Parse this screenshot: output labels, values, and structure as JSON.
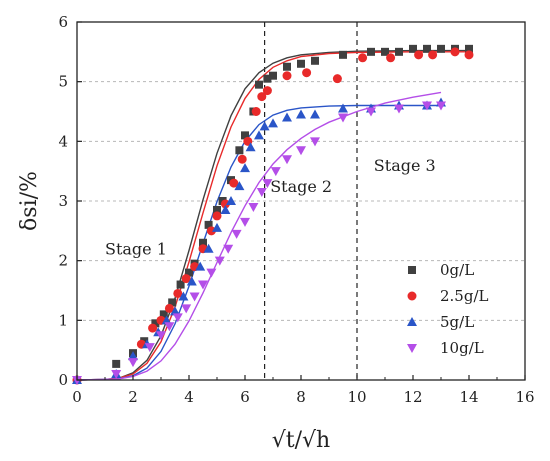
{
  "chart_data": {
    "type": "scatter",
    "xlabel": "√t/√h",
    "ylabel": "δsi/%",
    "xlim": [
      0,
      16
    ],
    "ylim": [
      0,
      6
    ],
    "x_ticks": [
      "0",
      "2",
      "4",
      "6",
      "8",
      "10",
      "12",
      "14",
      "16"
    ],
    "y_ticks": [
      "0",
      "1",
      "2",
      "3",
      "4",
      "5",
      "6"
    ],
    "grid": "horizontal dashed",
    "legend_position": "bottom-right",
    "vlines": [
      6.7,
      10.0
    ],
    "annotations": [
      {
        "text": "Stage 1",
        "x": 1.0,
        "y": 2.1
      },
      {
        "text": "Stage 2",
        "x": 6.9,
        "y": 3.15
      },
      {
        "text": "Stage 3",
        "x": 10.6,
        "y": 3.5
      }
    ],
    "series": [
      {
        "name": "0g/L",
        "marker": "square",
        "color": "#404040",
        "points": [
          [
            0,
            0
          ],
          [
            1.4,
            0.27
          ],
          [
            2.0,
            0.45
          ],
          [
            2.4,
            0.65
          ],
          [
            2.8,
            0.95
          ],
          [
            3.1,
            1.1
          ],
          [
            3.4,
            1.3
          ],
          [
            3.7,
            1.6
          ],
          [
            4.0,
            1.8
          ],
          [
            4.2,
            1.95
          ],
          [
            4.5,
            2.3
          ],
          [
            4.7,
            2.6
          ],
          [
            5.0,
            2.85
          ],
          [
            5.2,
            3.0
          ],
          [
            5.5,
            3.35
          ],
          [
            5.8,
            3.85
          ],
          [
            6.0,
            4.1
          ],
          [
            6.3,
            4.5
          ],
          [
            6.5,
            4.95
          ],
          [
            6.8,
            5.05
          ],
          [
            7.0,
            5.1
          ],
          [
            7.5,
            5.25
          ],
          [
            8.0,
            5.3
          ],
          [
            8.5,
            5.35
          ],
          [
            9.5,
            5.45
          ],
          [
            10.5,
            5.5
          ],
          [
            11.0,
            5.5
          ],
          [
            11.5,
            5.5
          ],
          [
            12.0,
            5.55
          ],
          [
            12.5,
            5.55
          ],
          [
            13.0,
            5.55
          ],
          [
            13.5,
            5.55
          ],
          [
            14.0,
            5.55
          ]
        ],
        "fit": [
          [
            0,
            0
          ],
          [
            1,
            0.01
          ],
          [
            1.5,
            0.03
          ],
          [
            2,
            0.12
          ],
          [
            2.5,
            0.33
          ],
          [
            3,
            0.74
          ],
          [
            3.5,
            1.37
          ],
          [
            4,
            2.17
          ],
          [
            4.5,
            3.02
          ],
          [
            5,
            3.8
          ],
          [
            5.5,
            4.43
          ],
          [
            6,
            4.88
          ],
          [
            6.5,
            5.15
          ],
          [
            7,
            5.31
          ],
          [
            7.5,
            5.4
          ],
          [
            8,
            5.45
          ],
          [
            9,
            5.49
          ],
          [
            10,
            5.51
          ],
          [
            12,
            5.52
          ],
          [
            14,
            5.52
          ]
        ]
      },
      {
        "name": "2.5g/L",
        "marker": "circle",
        "color": "#e82a2a",
        "points": [
          [
            0,
            0
          ],
          [
            2.3,
            0.6
          ],
          [
            2.7,
            0.87
          ],
          [
            3.0,
            1.0
          ],
          [
            3.3,
            1.2
          ],
          [
            3.6,
            1.45
          ],
          [
            3.9,
            1.7
          ],
          [
            4.2,
            1.9
          ],
          [
            4.5,
            2.2
          ],
          [
            4.8,
            2.5
          ],
          [
            5.0,
            2.75
          ],
          [
            5.3,
            2.95
          ],
          [
            5.6,
            3.3
          ],
          [
            5.9,
            3.7
          ],
          [
            6.1,
            4.0
          ],
          [
            6.4,
            4.5
          ],
          [
            6.6,
            4.75
          ],
          [
            6.8,
            4.85
          ],
          [
            7.5,
            5.1
          ],
          [
            8.2,
            5.15
          ],
          [
            9.3,
            5.05
          ],
          [
            10.2,
            5.4
          ],
          [
            11.2,
            5.4
          ],
          [
            12.2,
            5.45
          ],
          [
            12.7,
            5.45
          ],
          [
            13.5,
            5.5
          ],
          [
            14.0,
            5.45
          ]
        ],
        "fit": [
          [
            0,
            0
          ],
          [
            1,
            0.01
          ],
          [
            1.5,
            0.03
          ],
          [
            2,
            0.1
          ],
          [
            2.5,
            0.28
          ],
          [
            3,
            0.64
          ],
          [
            3.5,
            1.22
          ],
          [
            4,
            1.98
          ],
          [
            4.5,
            2.8
          ],
          [
            5,
            3.59
          ],
          [
            5.5,
            4.24
          ],
          [
            6,
            4.72
          ],
          [
            6.5,
            5.04
          ],
          [
            7,
            5.24
          ],
          [
            7.5,
            5.35
          ],
          [
            8,
            5.42
          ],
          [
            9,
            5.47
          ],
          [
            10,
            5.49
          ],
          [
            12,
            5.5
          ],
          [
            14,
            5.5
          ]
        ]
      },
      {
        "name": "5g/L",
        "marker": "triangle-up",
        "color": "#2a55c8",
        "points": [
          [
            0,
            0
          ],
          [
            1.4,
            0.1
          ],
          [
            2.0,
            0.4
          ],
          [
            2.5,
            0.6
          ],
          [
            2.9,
            0.8
          ],
          [
            3.2,
            1.0
          ],
          [
            3.5,
            1.15
          ],
          [
            3.8,
            1.4
          ],
          [
            4.1,
            1.65
          ],
          [
            4.4,
            1.9
          ],
          [
            4.7,
            2.2
          ],
          [
            5.0,
            2.55
          ],
          [
            5.3,
            2.85
          ],
          [
            5.5,
            3.0
          ],
          [
            5.8,
            3.25
          ],
          [
            6.0,
            3.55
          ],
          [
            6.2,
            3.9
          ],
          [
            6.5,
            4.1
          ],
          [
            6.7,
            4.25
          ],
          [
            7.0,
            4.3
          ],
          [
            7.5,
            4.4
          ],
          [
            8.0,
            4.45
          ],
          [
            8.5,
            4.45
          ],
          [
            9.5,
            4.55
          ],
          [
            10.5,
            4.55
          ],
          [
            11.5,
            4.6
          ],
          [
            12.5,
            4.6
          ],
          [
            13.0,
            4.65
          ]
        ],
        "fit": [
          [
            0,
            0
          ],
          [
            1,
            0.01
          ],
          [
            1.5,
            0.02
          ],
          [
            2,
            0.07
          ],
          [
            2.5,
            0.2
          ],
          [
            3,
            0.48
          ],
          [
            3.5,
            0.94
          ],
          [
            4,
            1.57
          ],
          [
            4.5,
            2.29
          ],
          [
            5,
            2.99
          ],
          [
            5.5,
            3.57
          ],
          [
            6,
            4.0
          ],
          [
            6.5,
            4.28
          ],
          [
            7,
            4.44
          ],
          [
            7.5,
            4.52
          ],
          [
            8,
            4.56
          ],
          [
            9,
            4.59
          ],
          [
            10,
            4.6
          ],
          [
            12,
            4.6
          ],
          [
            13,
            4.6
          ]
        ]
      },
      {
        "name": "10g/L",
        "marker": "triangle-down",
        "color": "#b44ee8",
        "points": [
          [
            0,
            0
          ],
          [
            1.4,
            0.1
          ],
          [
            2.0,
            0.3
          ],
          [
            2.6,
            0.55
          ],
          [
            3.0,
            0.75
          ],
          [
            3.3,
            0.9
          ],
          [
            3.6,
            1.05
          ],
          [
            3.9,
            1.2
          ],
          [
            4.2,
            1.4
          ],
          [
            4.5,
            1.6
          ],
          [
            4.8,
            1.8
          ],
          [
            5.1,
            2.0
          ],
          [
            5.4,
            2.2
          ],
          [
            5.7,
            2.45
          ],
          [
            6.0,
            2.65
          ],
          [
            6.3,
            2.9
          ],
          [
            6.6,
            3.15
          ],
          [
            6.8,
            3.3
          ],
          [
            7.1,
            3.5
          ],
          [
            7.5,
            3.7
          ],
          [
            8.0,
            3.85
          ],
          [
            8.5,
            4.0
          ],
          [
            9.5,
            4.4
          ],
          [
            10.5,
            4.5
          ],
          [
            11.5,
            4.55
          ],
          [
            12.5,
            4.6
          ],
          [
            13.0,
            4.6
          ]
        ],
        "fit": [
          [
            0,
            0
          ],
          [
            1,
            0.01
          ],
          [
            1.5,
            0.02
          ],
          [
            2,
            0.06
          ],
          [
            2.5,
            0.15
          ],
          [
            3,
            0.32
          ],
          [
            3.5,
            0.6
          ],
          [
            4,
            0.99
          ],
          [
            4.5,
            1.46
          ],
          [
            5,
            1.97
          ],
          [
            5.5,
            2.47
          ],
          [
            6,
            2.92
          ],
          [
            6.5,
            3.31
          ],
          [
            7,
            3.62
          ],
          [
            7.5,
            3.86
          ],
          [
            8,
            4.05
          ],
          [
            8.5,
            4.2
          ],
          [
            9,
            4.32
          ],
          [
            10,
            4.5
          ],
          [
            11,
            4.64
          ],
          [
            12,
            4.74
          ],
          [
            13,
            4.82
          ]
        ]
      }
    ]
  }
}
